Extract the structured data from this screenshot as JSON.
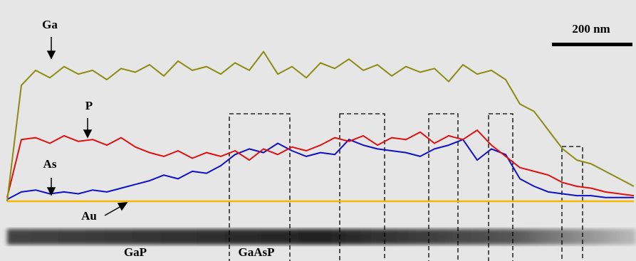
{
  "chart_data": {
    "type": "line",
    "x": [
      0,
      20,
      40,
      60,
      80,
      100,
      120,
      140,
      160,
      180,
      200,
      220,
      240,
      260,
      280,
      300,
      320,
      340,
      360,
      380,
      400,
      420,
      440,
      460,
      480,
      500,
      520,
      540,
      560,
      580,
      600,
      620,
      640,
      660,
      680,
      700,
      720,
      740,
      760,
      780,
      800,
      820,
      840,
      860,
      880
    ],
    "xlim": [
      0,
      880
    ],
    "ylim": [
      0,
      100
    ],
    "series": [
      {
        "name": "Ga",
        "color": "#8b8b12",
        "values": [
          0,
          62,
          70,
          66,
          72,
          68,
          70,
          65,
          71,
          69,
          73,
          67,
          75,
          70,
          72,
          68,
          74,
          70,
          80,
          68,
          72,
          66,
          74,
          71,
          76,
          70,
          73,
          67,
          72,
          69,
          71,
          64,
          73,
          68,
          70,
          65,
          52,
          48,
          38,
          28,
          22,
          20,
          16,
          12,
          8
        ]
      },
      {
        "name": "P",
        "color": "#e01010",
        "values": [
          2,
          33,
          34,
          31,
          35,
          32,
          33,
          30,
          34,
          29,
          26,
          24,
          27,
          23,
          26,
          24,
          27,
          22,
          28,
          25,
          29,
          27,
          30,
          34,
          32,
          35,
          30,
          34,
          33,
          37,
          31,
          35,
          33,
          38,
          30,
          24,
          18,
          16,
          14,
          10,
          8,
          7,
          5,
          4,
          3
        ]
      },
      {
        "name": "As",
        "color": "#1010c8",
        "values": [
          1,
          5,
          6,
          4,
          5,
          4,
          6,
          5,
          7,
          9,
          11,
          14,
          12,
          16,
          15,
          19,
          25,
          28,
          26,
          31,
          27,
          24,
          26,
          25,
          33,
          30,
          28,
          27,
          26,
          24,
          28,
          30,
          33,
          22,
          28,
          25,
          12,
          8,
          5,
          4,
          3,
          3,
          2,
          2,
          2
        ]
      },
      {
        "name": "Au",
        "color": "#f5b800",
        "values": [
          0,
          0,
          0,
          0,
          0,
          0,
          0,
          0,
          0,
          0,
          0,
          0,
          0,
          0,
          0,
          0,
          0,
          0,
          0,
          0,
          0,
          0,
          0,
          0,
          0,
          0,
          0,
          0,
          0,
          0,
          0,
          0,
          0,
          0,
          0,
          0,
          0,
          0,
          0,
          0,
          0,
          0,
          0,
          0,
          0
        ]
      }
    ],
    "annotations": [
      "GaP",
      "GaAsP"
    ],
    "scale_bar": "200 nm"
  }
}
